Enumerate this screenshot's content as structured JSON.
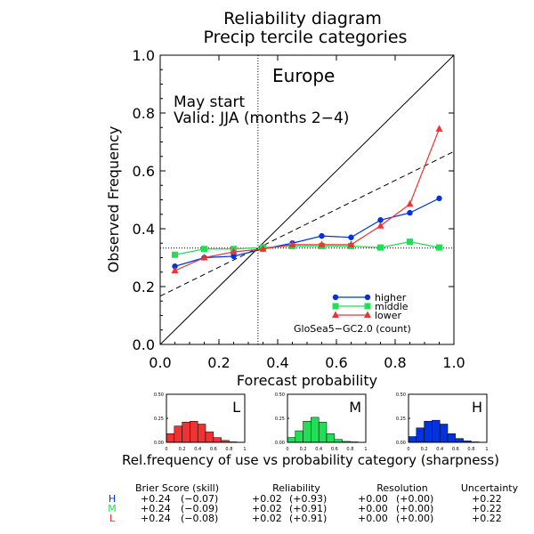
{
  "title_line1": "Reliability diagram",
  "title_line2": "Precip tercile categories",
  "region": "Europe",
  "start": "May start",
  "valid": "Valid: JJA (months 2−4)",
  "chart_data": {
    "type": "line",
    "xlabel": "Forecast probability",
    "ylabel": "Observed Frequency",
    "xlim": [
      0,
      1
    ],
    "ylim": [
      0,
      1
    ],
    "xticks": [
      "0.0",
      "0.2",
      "0.4",
      "0.6",
      "0.8",
      "1.0"
    ],
    "yticks": [
      "0.0",
      "0.2",
      "0.4",
      "0.6",
      "0.8",
      "1.0"
    ],
    "x": [
      0.05,
      0.15,
      0.25,
      0.35,
      0.45,
      0.55,
      0.65,
      0.75,
      0.85,
      0.95
    ],
    "climatology": 0.333,
    "skill_line": {
      "start": [
        0,
        0.167
      ],
      "end": [
        1,
        0.667
      ]
    },
    "series": [
      {
        "name": "higher",
        "color": "#0033dd",
        "marker": "circle",
        "values": [
          0.27,
          0.3,
          0.305,
          0.33,
          0.35,
          0.375,
          0.37,
          0.43,
          0.455,
          0.505
        ]
      },
      {
        "name": "middle",
        "color": "#22dd55",
        "marker": "square",
        "values": [
          0.31,
          0.33,
          0.33,
          0.335,
          0.34,
          0.34,
          0.34,
          0.335,
          0.355,
          0.335
        ]
      },
      {
        "name": "lower",
        "color": "#ee3333",
        "marker": "triangle",
        "values": [
          0.255,
          0.3,
          0.32,
          0.33,
          0.345,
          0.345,
          0.345,
          0.41,
          0.485,
          0.745
        ]
      }
    ],
    "legend_title": "GloSea5−GC2.0 (count)",
    "legend_position": "bottom-right"
  },
  "sharpness": {
    "yticks": [
      "0.50",
      "0.25",
      "0.00"
    ],
    "xticks": [
      "0",
      "0.2",
      "0.4",
      "0.6",
      "0.8",
      "1"
    ],
    "ylim": [
      0,
      0.5
    ],
    "panels": [
      {
        "label": "L",
        "color": "#ee3333",
        "values": [
          0.09,
          0.17,
          0.21,
          0.22,
          0.19,
          0.11,
          0.05,
          0.02,
          0.005,
          0.0
        ]
      },
      {
        "label": "M",
        "color": "#22dd55",
        "values": [
          0.05,
          0.12,
          0.22,
          0.26,
          0.21,
          0.09,
          0.03,
          0.01,
          0.005,
          0.0
        ]
      },
      {
        "label": "H",
        "color": "#0033dd",
        "values": [
          0.06,
          0.15,
          0.22,
          0.23,
          0.19,
          0.09,
          0.04,
          0.015,
          0.005,
          0.0
        ]
      }
    ],
    "caption": "Rel.frequency of use vs probability category (sharpness)"
  },
  "scores": {
    "headers": [
      "Brier Score (skill)",
      "Reliability",
      "Resolution",
      "Uncertainty"
    ],
    "rows": [
      {
        "label": "H",
        "color": "#0033dd",
        "brier": "+0.24",
        "brier_skill": "(−0.07)",
        "rel": "+0.02",
        "rel_skill": "(+0.93)",
        "res": "+0.00",
        "res_skill": "(+0.00)",
        "unc": "+0.22"
      },
      {
        "label": "M",
        "color": "#22dd55",
        "brier": "+0.24",
        "brier_skill": "(−0.09)",
        "rel": "+0.02",
        "rel_skill": "(+0.91)",
        "res": "+0.00",
        "res_skill": "(+0.00)",
        "unc": "+0.22"
      },
      {
        "label": "L",
        "color": "#ee3333",
        "brier": "+0.24",
        "brier_skill": "(−0.08)",
        "rel": "+0.02",
        "rel_skill": "(+0.91)",
        "res": "+0.00",
        "res_skill": "(+0.00)",
        "unc": "+0.22"
      }
    ]
  }
}
